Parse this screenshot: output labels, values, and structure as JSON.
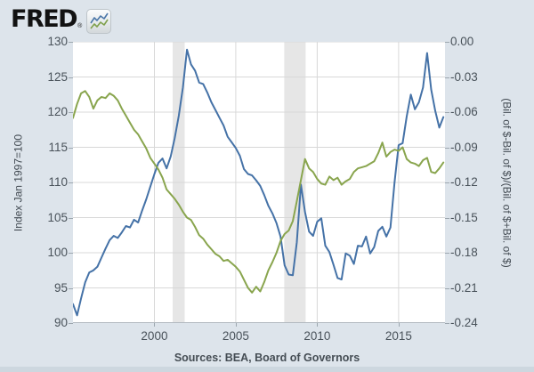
{
  "logo": {
    "text": "FRED",
    "registered": "®"
  },
  "colors": {
    "page_background": "#dde4eb",
    "plot_background": "#ffffff",
    "gridline": "#d8d8d8",
    "axis_line": "#b3bac0",
    "recession_band": "#e6e6e6",
    "blue_series": "#4572a7",
    "green_series": "#89a54e",
    "tick_text": "#49525a"
  },
  "chart_data": {
    "type": "line",
    "title": "",
    "legend": "none",
    "grid": true,
    "x_start": 1995.0,
    "x_step": 0.25,
    "x_axis": {
      "min": 1995.0,
      "max": 2017.85,
      "ticks": [
        2000,
        2005,
        2010,
        2015
      ]
    },
    "left_axis": {
      "title": "Index Jan 1997=100",
      "min": 90,
      "max": 130,
      "ticks": [
        130,
        125,
        120,
        115,
        110,
        105,
        100,
        95,
        90
      ]
    },
    "right_axis": {
      "title": "(Bil. of $-Bil. of $)/(Bil. of $+Bil. of $)",
      "min": -0.24,
      "max": 0,
      "tick_labels": [
        "0.00",
        "-0.03",
        "-0.06",
        "-0.09",
        "-0.12",
        "-0.15",
        "-0.18",
        "-0.21",
        "-0.24"
      ]
    },
    "recession_bands": [
      [
        2001.12,
        2001.86
      ],
      [
        2007.98,
        2009.29
      ]
    ],
    "series": [
      {
        "name": "blue_series",
        "axis": "left",
        "color": "#4572a7",
        "values": [
          92.7,
          91.1,
          93.5,
          95.8,
          97.2,
          97.5,
          98.0,
          99.3,
          100.6,
          101.8,
          102.4,
          102.1,
          102.9,
          103.8,
          103.6,
          104.7,
          104.3,
          106.0,
          107.6,
          109.4,
          111.2,
          112.8,
          113.4,
          112.0,
          113.7,
          116.3,
          119.5,
          123.5,
          128.9,
          126.8,
          125.9,
          124.2,
          124.0,
          122.8,
          121.4,
          120.3,
          119.2,
          118.1,
          116.5,
          115.7,
          114.9,
          113.8,
          111.9,
          111.2,
          111.0,
          110.3,
          109.5,
          108.2,
          106.7,
          105.6,
          104.2,
          102.3,
          98.2,
          96.9,
          96.8,
          101.5,
          109.7,
          105.8,
          103.0,
          102.4,
          104.4,
          104.9,
          101.0,
          100.1,
          98.3,
          96.4,
          96.2,
          99.9,
          99.6,
          98.4,
          101.0,
          100.9,
          102.3,
          99.9,
          100.8,
          103.1,
          103.7,
          102.3,
          103.6,
          110.0,
          115.3,
          115.6,
          119.4,
          122.5,
          120.4,
          121.4,
          123.5,
          128.4,
          123.2,
          120.2,
          117.8,
          119.3
        ]
      },
      {
        "name": "green_series",
        "axis": "right",
        "color": "#89a54e",
        "values": [
          -0.065,
          -0.053,
          -0.044,
          -0.042,
          -0.047,
          -0.057,
          -0.05,
          -0.047,
          -0.048,
          -0.044,
          -0.046,
          -0.05,
          -0.057,
          -0.063,
          -0.069,
          -0.075,
          -0.079,
          -0.085,
          -0.091,
          -0.099,
          -0.104,
          -0.109,
          -0.116,
          -0.126,
          -0.13,
          -0.134,
          -0.139,
          -0.145,
          -0.15,
          -0.152,
          -0.158,
          -0.165,
          -0.168,
          -0.173,
          -0.177,
          -0.181,
          -0.183,
          -0.187,
          -0.186,
          -0.189,
          -0.192,
          -0.196,
          -0.203,
          -0.21,
          -0.214,
          -0.209,
          -0.213,
          -0.205,
          -0.195,
          -0.188,
          -0.18,
          -0.17,
          -0.164,
          -0.161,
          -0.153,
          -0.136,
          -0.118,
          -0.1,
          -0.108,
          -0.111,
          -0.117,
          -0.121,
          -0.122,
          -0.115,
          -0.118,
          -0.116,
          -0.122,
          -0.119,
          -0.117,
          -0.111,
          -0.108,
          -0.107,
          -0.106,
          -0.104,
          -0.102,
          -0.095,
          -0.086,
          -0.098,
          -0.094,
          -0.092,
          -0.093,
          -0.09,
          -0.1,
          -0.103,
          -0.104,
          -0.106,
          -0.101,
          -0.099,
          -0.111,
          -0.112,
          -0.108,
          -0.103
        ]
      }
    ],
    "source": "Sources: BEA, Board of Governors"
  }
}
